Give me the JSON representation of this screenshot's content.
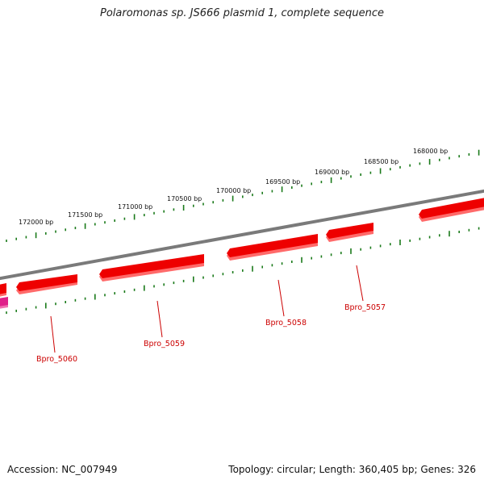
{
  "title": "Polaromonas sp. JS666 plasmid 1, complete sequence",
  "footer": {
    "accession": "Accession: NC_007949",
    "summary": "Topology: circular; Length: 360,405 bp; Genes: 326"
  },
  "ruler_labels": [
    "172000 bp",
    "171500 bp",
    "171000 bp",
    "170500 bp",
    "170000 bp",
    "169500 bp",
    "169000 bp",
    "168500 bp",
    "168000 bp"
  ],
  "genes": [
    {
      "label": "Bpro_5057"
    },
    {
      "label": "Bpro_5058"
    },
    {
      "label": "Bpro_5059"
    },
    {
      "label": "Bpro_5060"
    }
  ],
  "colors": {
    "backbone": "#7a7a7a",
    "gene": "#ee0000",
    "gene_shadow": "#ff6a6a",
    "tick": "#1a7a1a",
    "label": "#cc0000",
    "magenta": "#e0208a"
  }
}
